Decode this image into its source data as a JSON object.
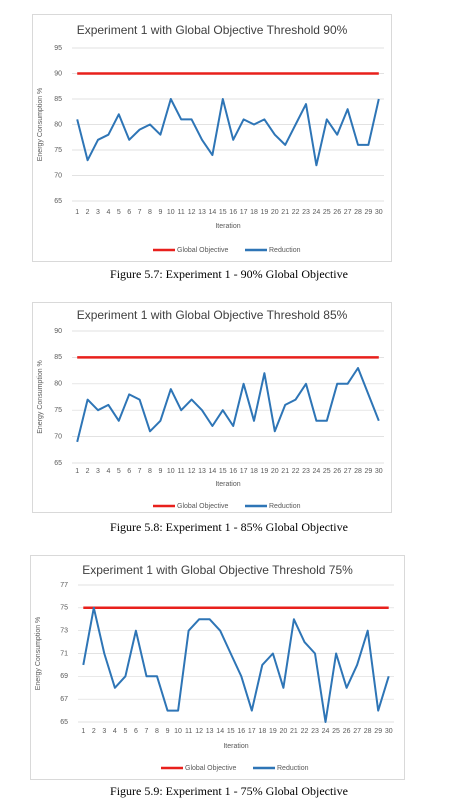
{
  "chart_data": [
    {
      "type": "line",
      "title": "Experiment 1 with Global Objective Threshold 90%",
      "x_label": "Iteration",
      "y_label": "Energy Consumption %",
      "categories": [
        "1",
        "2",
        "3",
        "4",
        "5",
        "6",
        "7",
        "8",
        "9",
        "10",
        "11",
        "12",
        "13",
        "14",
        "15",
        "16",
        "17",
        "18",
        "19",
        "20",
        "21",
        "22",
        "23",
        "24",
        "25",
        "26",
        "27",
        "28",
        "29",
        "30"
      ],
      "series": [
        {
          "name": "Global Objective",
          "color": "#e8201c",
          "values": [
            90,
            90,
            90,
            90,
            90,
            90,
            90,
            90,
            90,
            90,
            90,
            90,
            90,
            90,
            90,
            90,
            90,
            90,
            90,
            90,
            90,
            90,
            90,
            90,
            90,
            90,
            90,
            90,
            90,
            90
          ]
        },
        {
          "name": "Reduction",
          "color": "#2e75b6",
          "values": [
            81,
            73,
            77,
            78,
            82,
            77,
            79,
            80,
            78,
            85,
            81,
            81,
            77,
            74,
            85,
            77,
            81,
            80,
            81,
            78,
            76,
            80,
            84,
            72,
            81,
            78,
            83,
            76,
            76,
            85
          ]
        }
      ],
      "ylim": [
        65,
        95
      ],
      "yticks": [
        65,
        70,
        75,
        80,
        85,
        90,
        95
      ],
      "grid": true,
      "legend": "bottom"
    },
    {
      "type": "line",
      "title": "Experiment 1 with Global Objective Threshold 85%",
      "x_label": "Iteration",
      "y_label": "Energy Consumption %",
      "categories": [
        "1",
        "2",
        "3",
        "4",
        "5",
        "6",
        "7",
        "8",
        "9",
        "10",
        "11",
        "12",
        "13",
        "14",
        "15",
        "16",
        "17",
        "18",
        "19",
        "20",
        "21",
        "22",
        "23",
        "24",
        "25",
        "26",
        "27",
        "28",
        "29",
        "30"
      ],
      "series": [
        {
          "name": "Global Objective",
          "color": "#e8201c",
          "values": [
            85,
            85,
            85,
            85,
            85,
            85,
            85,
            85,
            85,
            85,
            85,
            85,
            85,
            85,
            85,
            85,
            85,
            85,
            85,
            85,
            85,
            85,
            85,
            85,
            85,
            85,
            85,
            85,
            85,
            85
          ]
        },
        {
          "name": "Reduction",
          "color": "#2e75b6",
          "values": [
            69,
            77,
            75,
            76,
            73,
            78,
            77,
            71,
            73,
            79,
            75,
            77,
            75,
            72,
            75,
            72,
            80,
            73,
            82,
            71,
            76,
            77,
            80,
            73,
            73,
            80,
            80,
            83,
            78,
            73
          ]
        }
      ],
      "ylim": [
        65,
        90
      ],
      "yticks": [
        65,
        70,
        75,
        80,
        85,
        90
      ],
      "grid": true,
      "legend": "bottom"
    },
    {
      "type": "line",
      "title": "Experiment 1 with Global Objective Threshold 75%",
      "x_label": "Iteration",
      "y_label": "Energy Consumption %",
      "categories": [
        "1",
        "2",
        "3",
        "4",
        "5",
        "6",
        "7",
        "8",
        "9",
        "10",
        "11",
        "12",
        "13",
        "14",
        "15",
        "16",
        "17",
        "18",
        "19",
        "20",
        "21",
        "22",
        "23",
        "24",
        "25",
        "26",
        "27",
        "28",
        "29",
        "30"
      ],
      "series": [
        {
          "name": "Global Objective",
          "color": "#e8201c",
          "values": [
            75,
            75,
            75,
            75,
            75,
            75,
            75,
            75,
            75,
            75,
            75,
            75,
            75,
            75,
            75,
            75,
            75,
            75,
            75,
            75,
            75,
            75,
            75,
            75,
            75,
            75,
            75,
            75,
            75,
            75
          ]
        },
        {
          "name": "Reduction",
          "color": "#2e75b6",
          "values": [
            70,
            75,
            71,
            68,
            69,
            73,
            69,
            69,
            66,
            66,
            73,
            74,
            74,
            73,
            71,
            69,
            66,
            70,
            71,
            68,
            74,
            72,
            71,
            65,
            71,
            68,
            70,
            73,
            66,
            69
          ]
        }
      ],
      "ylim": [
        65,
        77
      ],
      "yticks": [
        65,
        67,
        69,
        71,
        73,
        75,
        77
      ],
      "grid": true,
      "legend": "bottom"
    }
  ],
  "captions": [
    "Figure 5.7: Experiment 1 - 90% Global Objective",
    "Figure 5.8: Experiment 1 - 85% Global Objective",
    "Figure 5.9: Experiment 1 - 75% Global Objective"
  ]
}
